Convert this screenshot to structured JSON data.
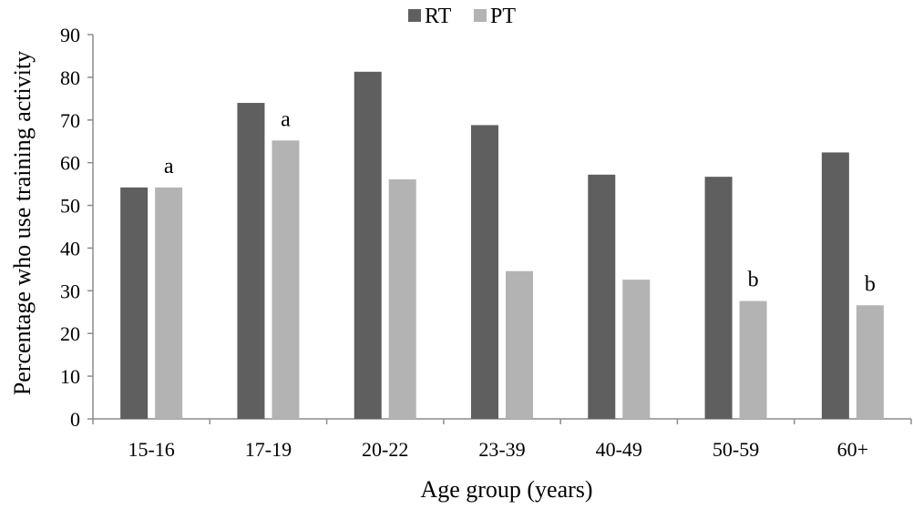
{
  "chart_data": {
    "type": "bar",
    "title": "",
    "xlabel": "Age group (years)",
    "ylabel": "Percentage who use training activity",
    "ylim": [
      0,
      90
    ],
    "yticks": [
      0,
      10,
      20,
      30,
      40,
      50,
      60,
      70,
      80,
      90
    ],
    "categories": [
      "15-16",
      "17-19",
      "20-22",
      "23-39",
      "40-49",
      "50-59",
      "60+"
    ],
    "series": [
      {
        "name": "RT",
        "color": "#5f5f5f",
        "values": [
          54.2,
          74.0,
          81.3,
          68.8,
          57.2,
          56.7,
          62.4
        ]
      },
      {
        "name": "PT",
        "color": "#b3b3b3",
        "values": [
          54.2,
          65.2,
          56.1,
          34.6,
          32.6,
          27.6,
          26.6
        ]
      }
    ],
    "annotations": [
      {
        "category": "15-16",
        "series": "PT",
        "text": "a"
      },
      {
        "category": "17-19",
        "series": "PT",
        "text": "a"
      },
      {
        "category": "50-59",
        "series": "PT",
        "text": "b"
      },
      {
        "category": "60+",
        "series": "PT",
        "text": "b"
      }
    ],
    "legend": {
      "position": "top-center"
    },
    "grid": false
  }
}
